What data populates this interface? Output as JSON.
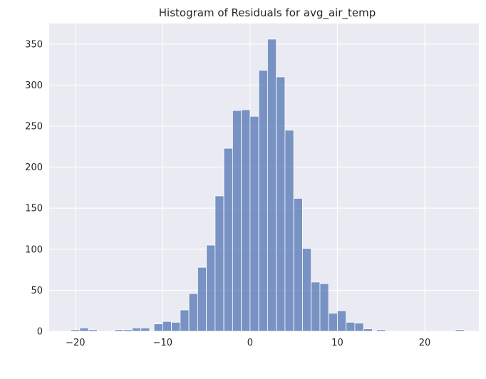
{
  "chart_data": {
    "type": "bar",
    "title": "Histogram of Residuals for avg_air_temp",
    "xlabel": "",
    "ylabel": "",
    "xlim": [
      -23.0,
      26.2
    ],
    "ylim": [
      0,
      375
    ],
    "x_ticks": [
      -20,
      -10,
      0,
      10,
      20
    ],
    "y_ticks": [
      0,
      50,
      100,
      150,
      200,
      250,
      300,
      350
    ],
    "grid": true,
    "colors": {
      "bar": "#4c72b0",
      "plot_background": "#eaeaf2",
      "grid": "#ffffff",
      "text": "#262626"
    },
    "bins": [
      {
        "x0": -20.5,
        "x1": -19.5,
        "count": 2
      },
      {
        "x0": -19.5,
        "x1": -18.5,
        "count": 4
      },
      {
        "x0": -18.5,
        "x1": -17.5,
        "count": 2
      },
      {
        "x0": -15.5,
        "x1": -14.5,
        "count": 2
      },
      {
        "x0": -14.5,
        "x1": -13.5,
        "count": 2
      },
      {
        "x0": -13.5,
        "x1": -12.5,
        "count": 4
      },
      {
        "x0": -12.5,
        "x1": -11.5,
        "count": 4
      },
      {
        "x0": -11.0,
        "x1": -10.0,
        "count": 9
      },
      {
        "x0": -10.0,
        "x1": -9.0,
        "count": 12
      },
      {
        "x0": -9.0,
        "x1": -8.0,
        "count": 11
      },
      {
        "x0": -8.0,
        "x1": -7.0,
        "count": 26
      },
      {
        "x0": -7.0,
        "x1": -6.0,
        "count": 46
      },
      {
        "x0": -6.0,
        "x1": -5.0,
        "count": 78
      },
      {
        "x0": -5.0,
        "x1": -4.0,
        "count": 105
      },
      {
        "x0": -4.0,
        "x1": -3.0,
        "count": 165
      },
      {
        "x0": -3.0,
        "x1": -2.0,
        "count": 223
      },
      {
        "x0": -2.0,
        "x1": -1.0,
        "count": 269
      },
      {
        "x0": -1.0,
        "x1": 0.0,
        "count": 270
      },
      {
        "x0": 0.0,
        "x1": 1.0,
        "count": 262
      },
      {
        "x0": 1.0,
        "x1": 2.0,
        "count": 318
      },
      {
        "x0": 2.0,
        "x1": 3.0,
        "count": 356
      },
      {
        "x0": 3.0,
        "x1": 4.0,
        "count": 310
      },
      {
        "x0": 4.0,
        "x1": 5.0,
        "count": 245
      },
      {
        "x0": 5.0,
        "x1": 6.0,
        "count": 162
      },
      {
        "x0": 6.0,
        "x1": 7.0,
        "count": 101
      },
      {
        "x0": 7.0,
        "x1": 8.0,
        "count": 60
      },
      {
        "x0": 8.0,
        "x1": 9.0,
        "count": 58
      },
      {
        "x0": 9.0,
        "x1": 10.0,
        "count": 22
      },
      {
        "x0": 10.0,
        "x1": 11.0,
        "count": 25
      },
      {
        "x0": 11.0,
        "x1": 12.0,
        "count": 11
      },
      {
        "x0": 12.0,
        "x1": 13.0,
        "count": 10
      },
      {
        "x0": 13.0,
        "x1": 14.0,
        "count": 3
      },
      {
        "x0": 14.5,
        "x1": 15.5,
        "count": 2
      },
      {
        "x0": 23.5,
        "x1": 24.5,
        "count": 2
      }
    ]
  }
}
